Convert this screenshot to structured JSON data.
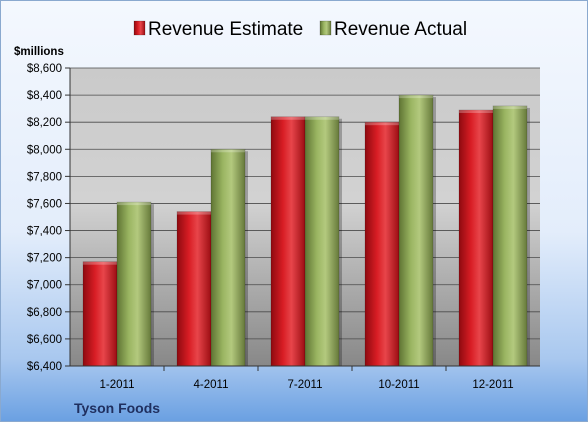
{
  "chart_data": {
    "type": "bar",
    "unit_label": "$millions",
    "categories": [
      "1-2011",
      "4-2011",
      "7-2011",
      "10-2011",
      "12-2011"
    ],
    "series": [
      {
        "name": "Revenue Estimate",
        "color": "#c8141b",
        "values": [
          7170,
          7540,
          8240,
          8200,
          8290
        ]
      },
      {
        "name": "Revenue Actual",
        "color": "#8fa657",
        "values": [
          7610,
          8000,
          8240,
          8400,
          8320
        ]
      }
    ],
    "ylim": [
      6400,
      8600
    ],
    "ytick_step": 200,
    "ytick_labels": [
      "$6,400",
      "$6,600",
      "$6,800",
      "$7,000",
      "$7,200",
      "$7,400",
      "$7,600",
      "$7,800",
      "$8,000",
      "$8,200",
      "$8,400",
      "$8,600"
    ],
    "grid": true,
    "legend_position": "top",
    "caption": "Tyson Foods"
  }
}
